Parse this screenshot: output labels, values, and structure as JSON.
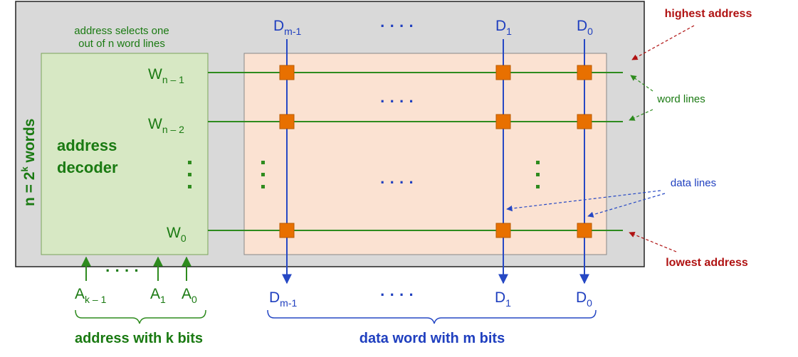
{
  "colors": {
    "outer_box_fill": "#d9d9d9",
    "decoder_fill": "#d7e8c4",
    "array_fill": "#fbe2d2",
    "word_line": "#2e8b1e",
    "data_line": "#2648c4",
    "cell": "#e87000",
    "label_green": "#1a7a12",
    "label_blue": "#1f3fbf",
    "label_red": "#b01212"
  },
  "decoder": {
    "caption_line1": "address selects one",
    "caption_line2": "out of n word lines",
    "title_line1": "address",
    "title_line2": "decoder",
    "vertical_label_prefix": "n = 2",
    "vertical_label_exp": "k",
    "vertical_label_suffix": " words",
    "vertical_dots": ":"
  },
  "word_lines": [
    {
      "main": "W",
      "sub": "n – 1"
    },
    {
      "main": "W",
      "sub": "n – 2"
    },
    {
      "main": "W",
      "sub": "0"
    }
  ],
  "data_columns_top": [
    {
      "main": "D",
      "sub": "m-1"
    },
    {
      "main": "D",
      "sub": "1"
    },
    {
      "main": "D",
      "sub": "0"
    }
  ],
  "data_columns_bottom": [
    {
      "main": "D",
      "sub": "m-1"
    },
    {
      "main": "D",
      "sub": "1"
    },
    {
      "main": "D",
      "sub": "0"
    }
  ],
  "address_inputs": [
    {
      "main": "A",
      "sub": "k – 1"
    },
    {
      "main": "A",
      "sub": "1"
    },
    {
      "main": "A",
      "sub": "0"
    }
  ],
  "ellipsis": "· · · ·",
  "labels": {
    "highest_address": "highest  address",
    "lowest_address": "lowest  address",
    "word_lines": "word lines",
    "data_lines": "data lines",
    "address_bits": "address with k bits",
    "data_word_bits": "data word with m bits"
  }
}
